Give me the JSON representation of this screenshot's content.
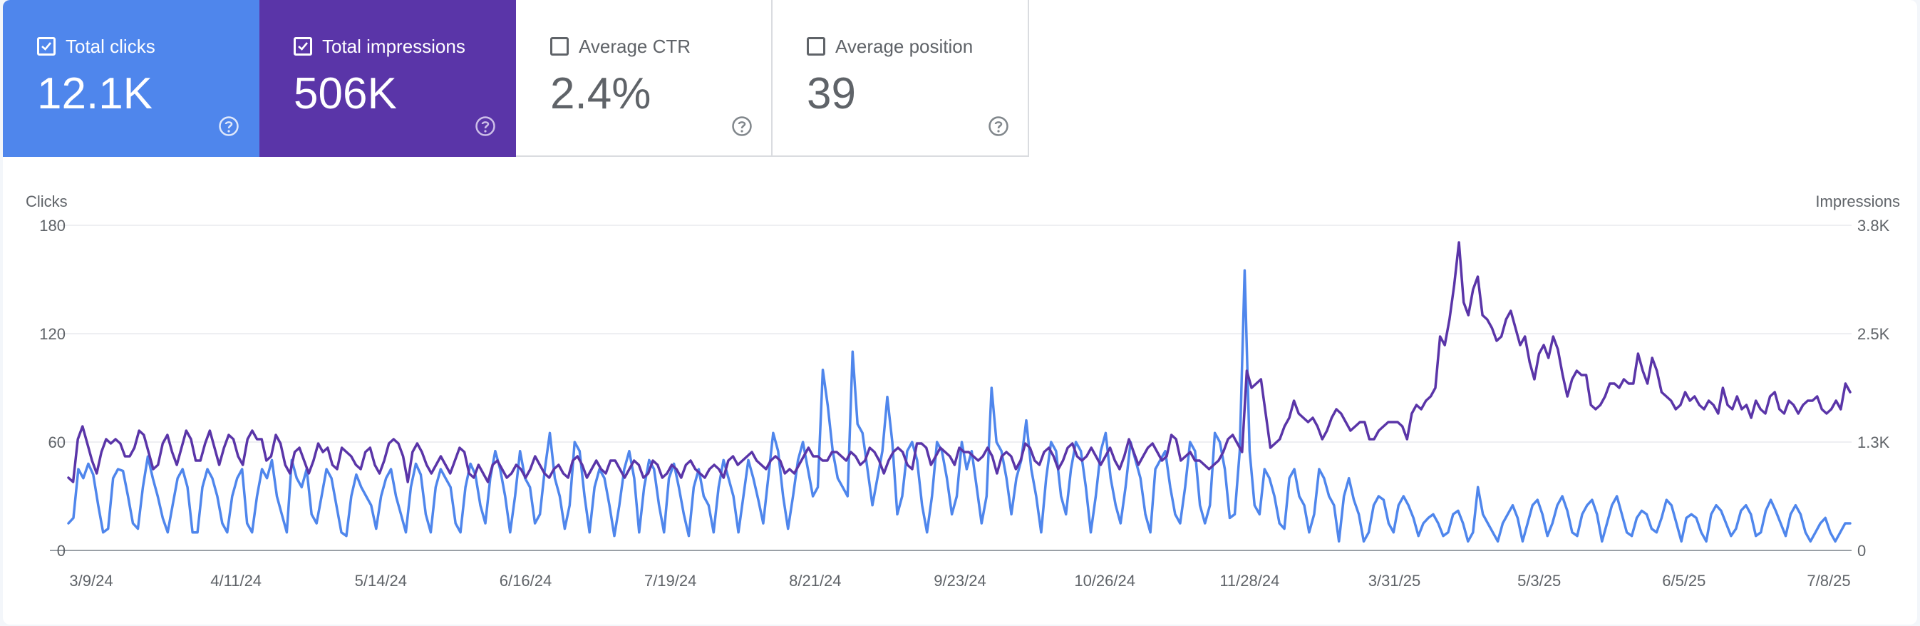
{
  "cards": [
    {
      "label": "Total clicks",
      "value": "12.1K",
      "checked": true
    },
    {
      "label": "Total impressions",
      "value": "506K",
      "checked": true
    },
    {
      "label": "Average CTR",
      "value": "2.4%",
      "checked": false
    },
    {
      "label": "Average position",
      "value": "39",
      "checked": false
    }
  ],
  "colors": {
    "clicks": "#4f86ec",
    "impressions": "#5a35a8",
    "grid": "#e8eaed",
    "axis_text": "#5f6368"
  },
  "icons": {
    "checkbox": "checkbox-icon",
    "help": "help-circle-icon"
  },
  "chart_data": {
    "type": "line",
    "left_axis_label": "Clicks",
    "right_axis_label": "Impressions",
    "left_ticks": [
      "180",
      "120",
      "60",
      "0"
    ],
    "right_ticks": [
      "3.8K",
      "2.5K",
      "1.3K",
      "0"
    ],
    "x_tick_labels": [
      "3/9/24",
      "4/11/24",
      "5/14/24",
      "6/16/24",
      "7/19/24",
      "8/21/24",
      "9/23/24",
      "10/26/24",
      "11/28/24",
      "3/31/25",
      "5/3/25",
      "6/5/25",
      "7/8/25"
    ],
    "ylim_left": [
      0,
      180
    ],
    "ylim_right": [
      0,
      3800
    ],
    "grid": true,
    "series": [
      {
        "name": "Clicks",
        "axis": "left",
        "values": [
          15,
          18,
          45,
          40,
          48,
          42,
          25,
          10,
          12,
          40,
          45,
          44,
          30,
          15,
          12,
          35,
          52,
          40,
          30,
          18,
          10,
          25,
          40,
          45,
          35,
          10,
          10,
          35,
          45,
          40,
          30,
          15,
          10,
          30,
          40,
          45,
          15,
          10,
          30,
          45,
          40,
          50,
          30,
          20,
          10,
          50,
          40,
          35,
          45,
          20,
          15,
          30,
          45,
          40,
          25,
          10,
          8,
          30,
          42,
          35,
          30,
          25,
          12,
          30,
          40,
          45,
          30,
          20,
          10,
          35,
          48,
          42,
          20,
          10,
          35,
          45,
          40,
          35,
          15,
          10,
          35,
          48,
          42,
          25,
          15,
          40,
          55,
          45,
          30,
          10,
          30,
          55,
          40,
          35,
          15,
          20,
          45,
          65,
          40,
          30,
          12,
          25,
          60,
          55,
          30,
          10,
          35,
          45,
          40,
          25,
          8,
          25,
          45,
          55,
          40,
          10,
          35,
          50,
          45,
          25,
          10,
          40,
          48,
          35,
          20,
          8,
          35,
          45,
          30,
          25,
          10,
          35,
          50,
          40,
          30,
          10,
          30,
          50,
          40,
          28,
          15,
          40,
          65,
          55,
          30,
          12,
          30,
          50,
          60,
          45,
          30,
          35,
          100,
          80,
          55,
          40,
          35,
          30,
          110,
          70,
          65,
          45,
          25,
          40,
          55,
          85,
          60,
          20,
          30,
          55,
          60,
          50,
          25,
          10,
          30,
          60,
          55,
          40,
          20,
          30,
          60,
          45,
          55,
          35,
          15,
          30,
          90,
          60,
          55,
          40,
          20,
          40,
          50,
          72,
          45,
          30,
          10,
          40,
          60,
          55,
          30,
          20,
          45,
          60,
          55,
          35,
          10,
          30,
          55,
          65,
          40,
          25,
          15,
          35,
          60,
          50,
          40,
          20,
          10,
          45,
          50,
          55,
          35,
          20,
          15,
          35,
          60,
          55,
          25,
          15,
          25,
          65,
          60,
          45,
          18,
          20,
          55,
          155,
          55,
          25,
          20,
          45,
          40,
          30,
          15,
          12,
          40,
          45,
          30,
          25,
          10,
          20,
          45,
          40,
          30,
          25,
          5,
          30,
          40,
          28,
          20,
          5,
          10,
          25,
          30,
          28,
          15,
          10,
          25,
          30,
          25,
          18,
          8,
          15,
          18,
          20,
          15,
          8,
          10,
          20,
          22,
          15,
          5,
          10,
          35,
          20,
          15,
          10,
          5,
          15,
          20,
          25,
          18,
          5,
          15,
          25,
          28,
          20,
          8,
          15,
          25,
          30,
          22,
          10,
          8,
          20,
          25,
          28,
          20,
          5,
          15,
          25,
          30,
          20,
          10,
          8,
          18,
          22,
          20,
          12,
          10,
          18,
          28,
          25,
          15,
          5,
          18,
          20,
          18,
          10,
          5,
          20,
          25,
          22,
          15,
          8,
          12,
          22,
          25,
          20,
          8,
          10,
          22,
          28,
          22,
          15,
          8,
          20,
          25,
          20,
          10,
          5,
          10,
          15,
          18,
          10,
          5,
          10,
          15,
          15
        ]
      },
      {
        "name": "Impressions",
        "axis": "right",
        "values": [
          850,
          800,
          1300,
          1450,
          1250,
          1050,
          900,
          1150,
          1300,
          1250,
          1300,
          1250,
          1100,
          1100,
          1200,
          1400,
          1350,
          1150,
          950,
          1000,
          1250,
          1350,
          1150,
          1000,
          1200,
          1400,
          1300,
          1050,
          1050,
          1250,
          1400,
          1200,
          1000,
          1200,
          1350,
          1300,
          1100,
          1000,
          1300,
          1400,
          1300,
          1300,
          1050,
          1100,
          1350,
          1250,
          1000,
          900,
          1150,
          1200,
          1050,
          900,
          1050,
          1250,
          1150,
          1200,
          1000,
          950,
          1200,
          1150,
          1100,
          1000,
          950,
          1150,
          1200,
          1000,
          900,
          1050,
          1250,
          1300,
          1250,
          1100,
          800,
          1150,
          1250,
          1150,
          1000,
          900,
          1000,
          1100,
          1000,
          900,
          1050,
          1200,
          1150,
          900,
          850,
          1000,
          900,
          800,
          1000,
          1050,
          950,
          850,
          900,
          1000,
          950,
          850,
          950,
          1100,
          1000,
          900,
          850,
          950,
          1000,
          900,
          850,
          1050,
          1100,
          1000,
          850,
          950,
          1050,
          950,
          900,
          1050,
          1050,
          950,
          850,
          950,
          1050,
          1000,
          850,
          900,
          1050,
          1000,
          850,
          900,
          1000,
          950,
          850,
          1000,
          1050,
          950,
          900,
          850,
          950,
          1000,
          950,
          850,
          1050,
          1100,
          1000,
          1050,
          1100,
          1150,
          1050,
          1000,
          950,
          1050,
          1100,
          1050,
          900,
          950,
          900,
          1000,
          1100,
          1200,
          1100,
          1100,
          1050,
          1050,
          1150,
          1150,
          1100,
          1050,
          1150,
          1100,
          1000,
          1050,
          1200,
          1150,
          1050,
          900,
          1050,
          1150,
          1200,
          1150,
          1000,
          950,
          1250,
          1250,
          1200,
          1000,
          1100,
          1200,
          1150,
          1100,
          1000,
          1200,
          1150,
          1150,
          1100,
          1050,
          1100,
          1200,
          1100,
          900,
          1100,
          1150,
          1100,
          950,
          1050,
          1250,
          1200,
          1050,
          1000,
          1150,
          1200,
          1100,
          950,
          1050,
          1200,
          1250,
          1100,
          1050,
          1100,
          1200,
          1100,
          1000,
          1100,
          1200,
          1050,
          950,
          1100,
          1300,
          1150,
          1000,
          1100,
          1200,
          1250,
          1150,
          1050,
          1100,
          1350,
          1300,
          1050,
          1100,
          1150,
          1050,
          1050,
          1000,
          950,
          1000,
          1050,
          1150,
          1300,
          1350,
          1250,
          1150,
          2100,
          1900,
          1950,
          2000,
          1600,
          1200,
          1250,
          1300,
          1450,
          1550,
          1750,
          1600,
          1550,
          1500,
          1550,
          1450,
          1300,
          1400,
          1550,
          1650,
          1600,
          1500,
          1400,
          1450,
          1500,
          1500,
          1300,
          1300,
          1400,
          1450,
          1500,
          1500,
          1500,
          1450,
          1300,
          1600,
          1700,
          1650,
          1750,
          1800,
          1900,
          2500,
          2400,
          2700,
          3100,
          3600,
          2900,
          2750,
          3050,
          3200,
          2750,
          2700,
          2600,
          2450,
          2500,
          2700,
          2800,
          2600,
          2400,
          2500,
          2200,
          2000,
          2300,
          2400,
          2250,
          2500,
          2350,
          2050,
          1800,
          2000,
          2100,
          2050,
          2050,
          1700,
          1650,
          1700,
          1800,
          1950,
          1950,
          1900,
          2000,
          1950,
          1950,
          2300,
          2100,
          1950,
          2250,
          2100,
          1850,
          1800,
          1750,
          1650,
          1700,
          1850,
          1750,
          1800,
          1700,
          1650,
          1750,
          1700,
          1600,
          1900,
          1700,
          1650,
          1800,
          1650,
          1700,
          1550,
          1750,
          1650,
          1600,
          1800,
          1850,
          1650,
          1600,
          1750,
          1700,
          1600,
          1700,
          1750,
          1750,
          1800,
          1650,
          1600,
          1650,
          1750,
          1650,
          1950,
          1850
        ]
      }
    ]
  }
}
